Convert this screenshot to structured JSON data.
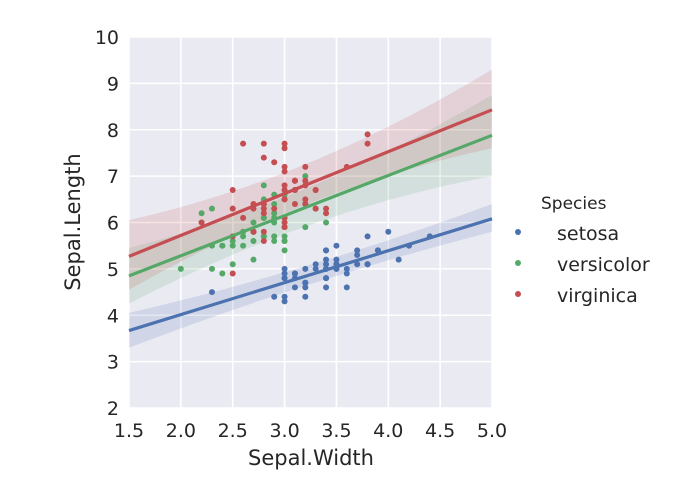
{
  "chart_data": {
    "type": "scatter",
    "xlabel": "Sepal.Width",
    "ylabel": "Sepal.Length",
    "xlim": [
      1.5,
      5.0
    ],
    "ylim": [
      2,
      10
    ],
    "xticks": [
      "1.5",
      "2.0",
      "2.5",
      "3.0",
      "3.5",
      "4.0",
      "4.5",
      "5.0"
    ],
    "yticks": [
      "2",
      "3",
      "4",
      "5",
      "6",
      "7",
      "8",
      "9",
      "10"
    ],
    "grid": true,
    "legend": {
      "title": "Species",
      "placement": "right"
    },
    "series": [
      {
        "name": "setosa",
        "color": "#4c72b0",
        "fit": {
          "y_at_1_5": 3.67,
          "y_at_5_0": 6.08,
          "band_at_1_5": [
            3.3,
            4.05
          ],
          "band_at_5_0": [
            5.8,
            6.4
          ]
        },
        "points": [
          [
            3.5,
            5.1
          ],
          [
            3.0,
            4.9
          ],
          [
            3.2,
            4.7
          ],
          [
            3.1,
            4.6
          ],
          [
            3.6,
            5.0
          ],
          [
            3.9,
            5.4
          ],
          [
            3.4,
            4.6
          ],
          [
            3.4,
            5.0
          ],
          [
            2.9,
            4.4
          ],
          [
            3.1,
            4.9
          ],
          [
            3.7,
            5.4
          ],
          [
            3.4,
            4.8
          ],
          [
            3.0,
            4.8
          ],
          [
            3.0,
            4.3
          ],
          [
            4.0,
            5.8
          ],
          [
            4.4,
            5.7
          ],
          [
            3.9,
            5.4
          ],
          [
            3.5,
            5.1
          ],
          [
            3.8,
            5.7
          ],
          [
            3.8,
            5.1
          ],
          [
            3.4,
            5.4
          ],
          [
            3.7,
            5.1
          ],
          [
            3.6,
            4.6
          ],
          [
            3.3,
            5.1
          ],
          [
            3.4,
            4.8
          ],
          [
            3.0,
            5.0
          ],
          [
            3.4,
            5.0
          ],
          [
            3.5,
            5.2
          ],
          [
            3.4,
            5.2
          ],
          [
            3.2,
            4.7
          ],
          [
            3.1,
            4.8
          ],
          [
            3.4,
            5.4
          ],
          [
            4.1,
            5.2
          ],
          [
            4.2,
            5.5
          ],
          [
            3.1,
            4.9
          ],
          [
            3.2,
            5.0
          ],
          [
            3.5,
            5.5
          ],
          [
            3.6,
            4.9
          ],
          [
            3.0,
            4.4
          ],
          [
            3.4,
            5.1
          ],
          [
            3.5,
            5.0
          ],
          [
            2.3,
            4.5
          ],
          [
            3.2,
            4.4
          ],
          [
            3.5,
            5.0
          ],
          [
            3.8,
            5.1
          ],
          [
            3.0,
            4.8
          ],
          [
            3.8,
            5.1
          ],
          [
            3.2,
            4.6
          ],
          [
            3.7,
            5.3
          ],
          [
            3.3,
            5.0
          ]
        ]
      },
      {
        "name": "versicolor",
        "color": "#55a868",
        "fit": {
          "y_at_1_5": 4.85,
          "y_at_5_0": 7.88,
          "band_at_1_5": [
            4.25,
            5.45
          ],
          "band_at_5_0": [
            7.0,
            8.75
          ]
        },
        "points": [
          [
            3.2,
            7.0
          ],
          [
            3.2,
            6.4
          ],
          [
            3.1,
            6.9
          ],
          [
            2.3,
            5.5
          ],
          [
            2.8,
            6.5
          ],
          [
            2.8,
            5.7
          ],
          [
            3.3,
            6.3
          ],
          [
            2.4,
            4.9
          ],
          [
            2.9,
            6.6
          ],
          [
            2.7,
            5.2
          ],
          [
            2.0,
            5.0
          ],
          [
            3.0,
            5.9
          ],
          [
            2.2,
            6.0
          ],
          [
            2.9,
            6.1
          ],
          [
            2.9,
            5.6
          ],
          [
            3.1,
            6.7
          ],
          [
            3.0,
            5.6
          ],
          [
            2.7,
            5.8
          ],
          [
            2.2,
            6.2
          ],
          [
            2.5,
            5.6
          ],
          [
            3.2,
            5.9
          ],
          [
            2.8,
            6.1
          ],
          [
            2.5,
            6.3
          ],
          [
            2.8,
            6.1
          ],
          [
            2.9,
            6.4
          ],
          [
            3.0,
            6.6
          ],
          [
            2.8,
            6.8
          ],
          [
            3.0,
            6.7
          ],
          [
            2.9,
            6.0
          ],
          [
            2.6,
            5.7
          ],
          [
            2.4,
            5.5
          ],
          [
            2.4,
            5.5
          ],
          [
            2.7,
            5.8
          ],
          [
            2.7,
            6.0
          ],
          [
            3.0,
            5.4
          ],
          [
            3.4,
            6.0
          ],
          [
            3.1,
            6.7
          ],
          [
            2.3,
            6.3
          ],
          [
            3.0,
            5.6
          ],
          [
            2.5,
            5.5
          ],
          [
            2.6,
            5.5
          ],
          [
            3.0,
            6.1
          ],
          [
            2.6,
            5.8
          ],
          [
            2.3,
            5.0
          ],
          [
            2.7,
            5.6
          ],
          [
            3.0,
            5.7
          ],
          [
            2.9,
            5.7
          ],
          [
            2.9,
            6.2
          ],
          [
            2.5,
            5.1
          ],
          [
            2.8,
            5.7
          ]
        ]
      },
      {
        "name": "virginica",
        "color": "#c44e52",
        "fit": {
          "y_at_1_5": 5.27,
          "y_at_5_0": 8.43,
          "band_at_1_5": [
            4.55,
            6.05
          ],
          "band_at_5_0": [
            7.6,
            9.3
          ]
        },
        "points": [
          [
            3.3,
            6.3
          ],
          [
            2.7,
            5.8
          ],
          [
            3.0,
            7.1
          ],
          [
            2.9,
            6.3
          ],
          [
            3.0,
            6.5
          ],
          [
            3.0,
            7.6
          ],
          [
            2.5,
            4.9
          ],
          [
            2.9,
            7.3
          ],
          [
            2.5,
            6.7
          ],
          [
            3.6,
            7.2
          ],
          [
            3.2,
            6.5
          ],
          [
            2.7,
            6.4
          ],
          [
            3.0,
            6.8
          ],
          [
            2.5,
            5.7
          ],
          [
            2.8,
            5.8
          ],
          [
            3.2,
            6.4
          ],
          [
            3.0,
            6.5
          ],
          [
            3.8,
            7.7
          ],
          [
            2.6,
            7.7
          ],
          [
            2.2,
            6.0
          ],
          [
            3.2,
            6.9
          ],
          [
            2.8,
            5.6
          ],
          [
            2.8,
            7.7
          ],
          [
            2.7,
            6.3
          ],
          [
            3.3,
            6.7
          ],
          [
            3.2,
            7.2
          ],
          [
            2.8,
            6.2
          ],
          [
            3.0,
            6.1
          ],
          [
            2.8,
            6.4
          ],
          [
            3.0,
            7.2
          ],
          [
            2.8,
            7.4
          ],
          [
            3.8,
            7.9
          ],
          [
            2.8,
            6.4
          ],
          [
            2.8,
            6.3
          ],
          [
            2.6,
            6.1
          ],
          [
            3.0,
            7.7
          ],
          [
            3.4,
            6.3
          ],
          [
            3.1,
            6.4
          ],
          [
            3.0,
            6.0
          ],
          [
            3.1,
            6.9
          ],
          [
            3.1,
            6.7
          ],
          [
            3.1,
            6.9
          ],
          [
            2.7,
            5.8
          ],
          [
            3.2,
            6.8
          ],
          [
            3.3,
            6.7
          ],
          [
            3.0,
            6.7
          ],
          [
            2.5,
            6.3
          ],
          [
            3.0,
            6.5
          ],
          [
            3.4,
            6.2
          ],
          [
            3.0,
            5.9
          ]
        ]
      }
    ]
  }
}
